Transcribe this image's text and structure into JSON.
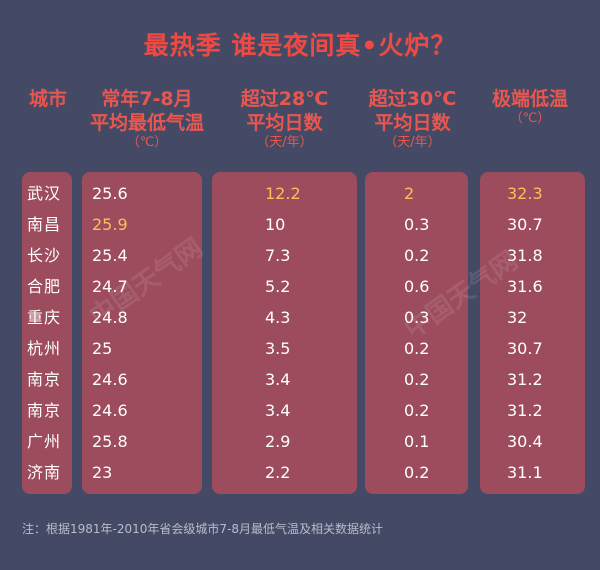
{
  "title": "最热季 谁是夜间真•火炉？",
  "headers": {
    "city": "城市",
    "col1": {
      "l1": "常年7-8月",
      "l2": "平均最低气温",
      "unit": "（℃）"
    },
    "col2": {
      "l1": "超过28℃",
      "l2": "平均日数",
      "unit": "（天/年）"
    },
    "col3": {
      "l1": "超过30℃",
      "l2": "平均日数",
      "unit": "（天/年）"
    },
    "col4": {
      "l1": "极端低温",
      "unit": "（℃）"
    }
  },
  "rows": [
    {
      "city": "武汉",
      "v1": "25.6",
      "v2": "12.2",
      "v3": "2",
      "v4": "32.3"
    },
    {
      "city": "南昌",
      "v1": "25.9",
      "v2": "10",
      "v3": "0.3",
      "v4": "30.7"
    },
    {
      "city": "长沙",
      "v1": "25.4",
      "v2": "7.3",
      "v3": "0.2",
      "v4": "31.8"
    },
    {
      "city": "合肥",
      "v1": "24.7",
      "v2": "5.2",
      "v3": "0.6",
      "v4": "31.6"
    },
    {
      "city": "重庆",
      "v1": "24.8",
      "v2": "4.3",
      "v3": "0.3",
      "v4": "32"
    },
    {
      "city": "杭州",
      "v1": "25",
      "v2": "3.5",
      "v3": "0.2",
      "v4": "30.7"
    },
    {
      "city": "南京",
      "v1": "24.6",
      "v2": "3.4",
      "v3": "0.2",
      "v4": "31.2"
    },
    {
      "city": "南京",
      "v1": "24.6",
      "v2": "3.4",
      "v3": "0.2",
      "v4": "31.2"
    },
    {
      "city": "广州",
      "v1": "25.8",
      "v2": "2.9",
      "v3": "0.1",
      "v4": "30.4"
    },
    {
      "city": "济南",
      "v1": "23",
      "v2": "2.2",
      "v3": "0.2",
      "v4": "31.1"
    }
  ],
  "watermark": "中国天气网",
  "note": "注：根据1981年-2010年省会级城市7-8月最低气温及相关数据统计",
  "colors": {
    "background": "#444a65",
    "panel": "#9c4c5d",
    "title": "#ee4a43",
    "highlight": "#f6c35a"
  }
}
